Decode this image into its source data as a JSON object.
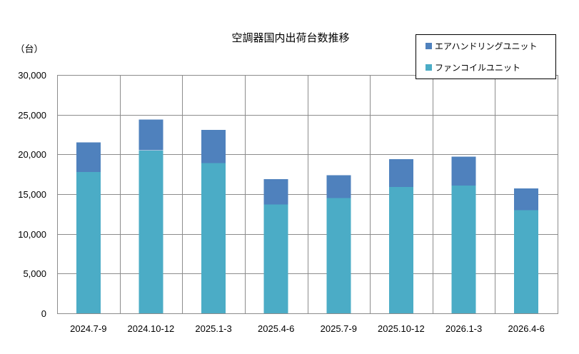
{
  "chart_data": {
    "type": "bar",
    "stacked": true,
    "title": "空調器国内出荷台数推移",
    "ylabel": "（台）",
    "xlabel": "",
    "categories": [
      "2024.7-9",
      "2024.10-12",
      "2025.1-3",
      "2025.4-6",
      "2025.7-9",
      "2025.10-12",
      "2026.1-3",
      "2026.4-6"
    ],
    "series": [
      {
        "name": "エアハンドリングユニット",
        "color": "#4f81bd",
        "values": [
          3700,
          3900,
          4200,
          3200,
          2900,
          3500,
          3600,
          2700
        ]
      },
      {
        "name": "ファンコイルユニット",
        "color": "#4bacc6",
        "values": [
          17800,
          20500,
          18900,
          13700,
          14500,
          15900,
          16100,
          13000
        ]
      }
    ],
    "ylim": [
      0,
      30000
    ],
    "yticks": [
      0,
      5000,
      10000,
      15000,
      20000,
      25000,
      30000
    ],
    "ytick_labels": [
      "0",
      "5,000",
      "10,000",
      "15,000",
      "20,000",
      "25,000",
      "30,000"
    ],
    "grid": true,
    "legend_position": "top-right"
  }
}
